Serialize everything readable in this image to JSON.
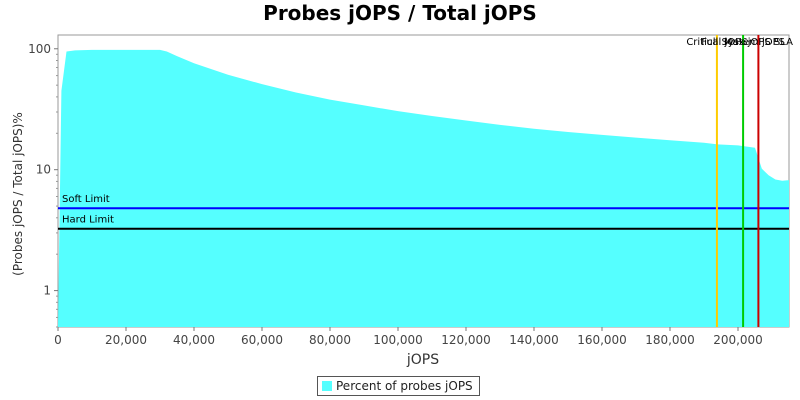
{
  "chart_data": {
    "type": "area",
    "title": "Probes jOPS / Total jOPS",
    "xlabel": "jOPS",
    "ylabel": "(Probes jOPS / Total jOPS)%",
    "xlim": [
      0,
      215000
    ],
    "ylim": [
      0.5,
      130
    ],
    "yscale": "log",
    "grid": false,
    "legend_position": "bottom-center",
    "x_ticks": [
      0,
      20000,
      40000,
      60000,
      80000,
      100000,
      120000,
      140000,
      160000,
      180000,
      200000
    ],
    "x_tick_labels": [
      "0",
      "20,000",
      "40,000",
      "60,000",
      "80,000",
      "100,000",
      "120,000",
      "140,000",
      "160,000",
      "180,000",
      "200,000"
    ],
    "y_ticks": [
      1,
      10,
      100
    ],
    "y_tick_labels": [
      "1",
      "10",
      "100"
    ],
    "series": [
      {
        "name": "Percent of probes jOPS",
        "color": "#55ffff",
        "x": [
          0,
          1000,
          2500,
          5000,
          10000,
          20000,
          30000,
          32000,
          35000,
          40000,
          50000,
          60000,
          70000,
          80000,
          90000,
          100000,
          110000,
          120000,
          130000,
          140000,
          150000,
          160000,
          170000,
          180000,
          190000,
          194000,
          200000,
          205000,
          207000,
          209000,
          211000,
          213000,
          215000
        ],
        "y": [
          0,
          45,
          95,
          97,
          98,
          98,
          98,
          95,
          87,
          76,
          61,
          51,
          43.5,
          38,
          34,
          30.5,
          27.8,
          25.5,
          23.5,
          21.8,
          20.5,
          19.4,
          18.4,
          17.5,
          16.7,
          16.2,
          15.9,
          15.2,
          10.2,
          9.0,
          8.3,
          8.1,
          8.2
        ]
      }
    ],
    "reference_lines": {
      "horizontal": [
        {
          "label": "Soft Limit",
          "y": 4.8,
          "color": "#0000ff"
        },
        {
          "label": "Hard Limit",
          "y": 3.25,
          "color": "#000000"
        }
      ],
      "vertical": [
        {
          "label": "Critical jOPS",
          "x": 193800,
          "color": "#ffcc00"
        },
        {
          "label": "Full System jOPS",
          "x": 201500,
          "color": "#00cc00"
        },
        {
          "label": "Max jOPS SLA",
          "x": 206000,
          "color": "#cc0000"
        }
      ]
    }
  }
}
